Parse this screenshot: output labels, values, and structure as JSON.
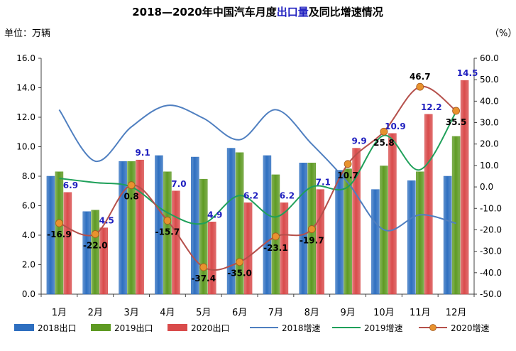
{
  "chart_data": {
    "type": "bar",
    "title_prefix": "2018—2020年中国汽车月度",
    "title_highlight": "出口量",
    "title_suffix": "及同比增速情况",
    "ylabel_left": "单位：万辆",
    "ylabel_right": "（%）",
    "categories": [
      "1月",
      "2月",
      "3月",
      "4月",
      "5月",
      "6月",
      "7月",
      "8月",
      "9月",
      "10月",
      "11月",
      "12月"
    ],
    "ylim_left": [
      0,
      16
    ],
    "ylim_right": [
      -50,
      60
    ],
    "yticks_left": [
      "0.0",
      "2.0",
      "4.0",
      "6.0",
      "8.0",
      "10.0",
      "12.0",
      "14.0",
      "16.0"
    ],
    "yticks_right": [
      "-50.0",
      "-40.0",
      "-30.0",
      "-20.0",
      "-10.0",
      "0.0",
      "10.0",
      "20.0",
      "30.0",
      "40.0",
      "50.0",
      "60.0"
    ],
    "grid": false,
    "legend_position": "bottom",
    "bar_series": [
      {
        "name": "2018出口",
        "color": "#2E6FC0",
        "values": [
          8.0,
          5.6,
          9.0,
          9.4,
          9.3,
          9.9,
          9.4,
          8.9,
          8.4,
          7.1,
          7.7,
          8.0
        ]
      },
      {
        "name": "2019出口",
        "color": "#5E9A23",
        "values": [
          8.3,
          5.7,
          9.0,
          8.3,
          7.8,
          9.6,
          8.1,
          8.9,
          8.5,
          8.7,
          8.3,
          10.7
        ]
      },
      {
        "name": "2020出口",
        "color": "#D94B4B",
        "values": [
          6.9,
          4.5,
          9.1,
          7.0,
          4.9,
          6.2,
          6.2,
          7.1,
          9.9,
          10.9,
          12.2,
          14.5
        ],
        "labels": [
          "6.9",
          "4.5",
          "9.1",
          "7.0",
          "4.9",
          "6.2",
          "6.2",
          "7.1",
          "9.9",
          "10.9",
          "12.2",
          "14.5"
        ]
      }
    ],
    "line_series": [
      {
        "name": "2018增速",
        "color": "#4F7FC0",
        "values": [
          36,
          12,
          28,
          38,
          32,
          22,
          36,
          20,
          2,
          -20,
          -13,
          -17
        ]
      },
      {
        "name": "2019增速",
        "color": "#1FA05A",
        "values": [
          4,
          2,
          0,
          -12,
          -17,
          -4,
          -14,
          0,
          0,
          24,
          8,
          35
        ]
      },
      {
        "name": "2020增速",
        "color": "#B5504B",
        "marker_color": "#E8922E",
        "values": [
          -16.9,
          -22.0,
          0.8,
          -15.7,
          -37.4,
          -35.0,
          -23.1,
          -19.7,
          10.7,
          25.8,
          46.7,
          35.5
        ],
        "labels": [
          "-16.9",
          "-22.0",
          "0.8",
          "-15.7",
          "-37.4",
          "-35.0",
          "-23.1",
          "-19.7",
          "10.7",
          "25.8",
          "46.7",
          "35.5"
        ]
      }
    ],
    "label_colors": {
      "bar_label": "#1F1FBF",
      "line_label": "#000000",
      "title_highlight": "#1F1FBF"
    }
  }
}
